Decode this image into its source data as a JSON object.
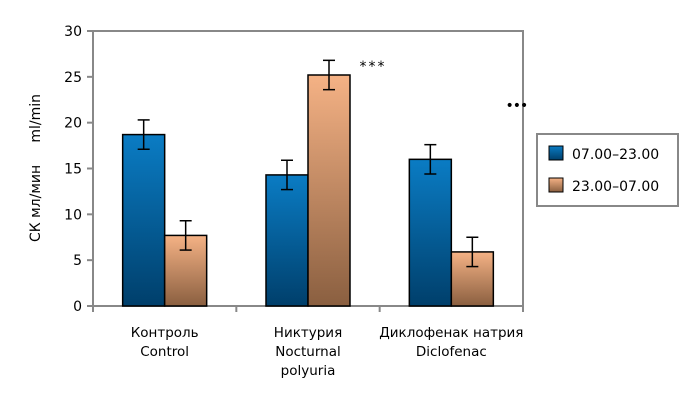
{
  "chart_data": {
    "type": "bar",
    "title": "",
    "xlabel": "",
    "ylabel": "СК мл/мин     ml/min",
    "ylim": [
      0,
      30
    ],
    "yticks": [
      0,
      5,
      10,
      15,
      20,
      25,
      30
    ],
    "grid": false,
    "legend_position": "right",
    "categories": [
      {
        "lines": [
          "Контроль",
          "Control"
        ]
      },
      {
        "lines": [
          "Никтурия",
          "Nocturnal",
          "polyuria"
        ]
      },
      {
        "lines": [
          "Диклофенак  натрия",
          "Diclofenac"
        ]
      }
    ],
    "series": [
      {
        "name": "07.00–23.00",
        "color_top": "#0a7cc4",
        "color_bottom": "#003f6b",
        "values": [
          18.7,
          14.3,
          16.0
        ],
        "errors": [
          1.6,
          1.6,
          1.6
        ]
      },
      {
        "name": "23.00–07.00",
        "color_top": "#f5b285",
        "color_bottom": "#8a5f40",
        "values": [
          7.7,
          25.2,
          5.9
        ],
        "errors": [
          1.6,
          1.6,
          1.6
        ]
      }
    ],
    "annotations": [
      {
        "category_index": 1,
        "text": "***"
      },
      {
        "category_index": 2,
        "text": "•••"
      }
    ]
  }
}
